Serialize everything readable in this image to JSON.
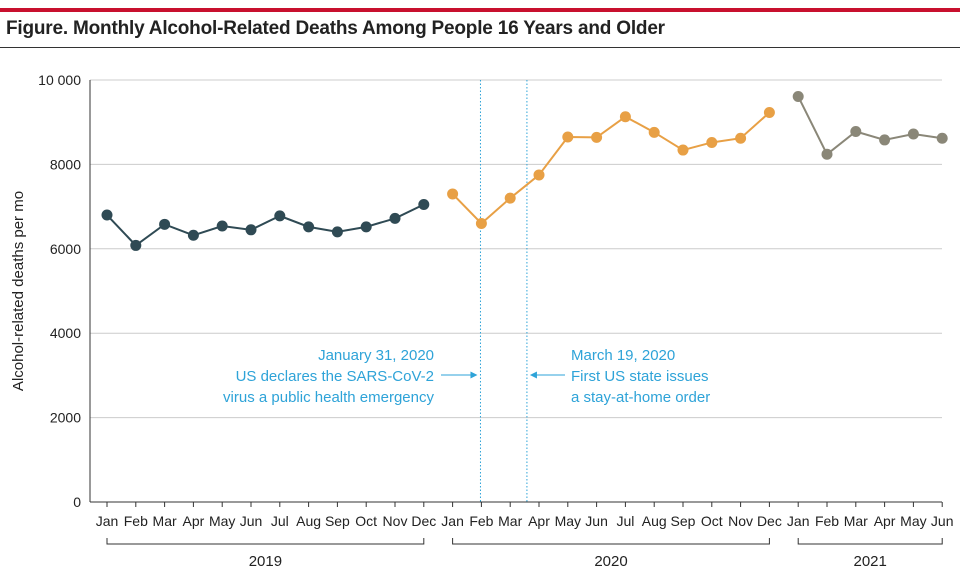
{
  "title": "Figure. Monthly Alcohol-Related Deaths Among People 16 Years and Older",
  "colors": {
    "accent_rule": "#c8102e",
    "series_2019": "#2f4a54",
    "series_2020": "#e8a045",
    "series_2021": "#8a8778",
    "annotation": "#2ea3d8",
    "grid": "#cccccc"
  },
  "chart_data": {
    "type": "line",
    "ylabel": "Alcohol-related deaths per mo",
    "xlabel": "",
    "ylim": [
      0,
      10000
    ],
    "yticks": [
      0,
      2000,
      4000,
      6000,
      8000,
      10000
    ],
    "ytick_labels": [
      "0",
      "2000",
      "4000",
      "6000",
      "8000",
      "10 000"
    ],
    "grid": "horizontal",
    "legend": "none",
    "series": [
      {
        "year": "2019",
        "color": "#2f4a54",
        "categories": [
          "Jan",
          "Feb",
          "Mar",
          "Apr",
          "May",
          "Jun",
          "Jul",
          "Aug",
          "Sep",
          "Oct",
          "Nov",
          "Dec"
        ],
        "values": [
          6800,
          6080,
          6580,
          6320,
          6540,
          6450,
          6780,
          6520,
          6400,
          6520,
          6720,
          7050
        ]
      },
      {
        "year": "2020",
        "color": "#e8a045",
        "categories": [
          "Jan",
          "Feb",
          "Mar",
          "Apr",
          "May",
          "Jun",
          "Jul",
          "Aug",
          "Sep",
          "Oct",
          "Nov",
          "Dec"
        ],
        "values": [
          7300,
          6600,
          7200,
          7750,
          8650,
          8640,
          9130,
          8760,
          8340,
          8520,
          8620,
          9230
        ]
      },
      {
        "year": "2021",
        "color": "#8a8778",
        "categories": [
          "Jan",
          "Feb",
          "Mar",
          "Apr",
          "May",
          "Jun"
        ],
        "values": [
          9610,
          8240,
          8780,
          8580,
          8720,
          8620
        ]
      }
    ],
    "annotations": [
      {
        "date_position": "2020-01-31",
        "lines": [
          "January 31, 2020",
          "US declares the SARS-CoV-2",
          "virus a public health emergency"
        ],
        "side": "left"
      },
      {
        "date_position": "2020-03-19",
        "lines": [
          "March 19, 2020",
          "First US state issues",
          "a stay-at-home order"
        ],
        "side": "right"
      }
    ]
  }
}
